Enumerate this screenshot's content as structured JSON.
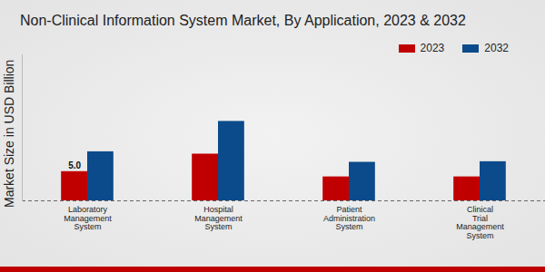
{
  "chart_data": {
    "type": "bar",
    "title": "Non-Clinical Information System Market, By Application, 2023 & 2032",
    "y_label": "Market Size in USD Billion",
    "categories": [
      "Laboratory\nManagement\nSystem",
      "Hospital\nManagement\nSystem",
      "Patient\nAdministration\nSystem",
      "Clinical\nTrial\nManagement\nSystem"
    ],
    "series": [
      {
        "name": "2023",
        "color": "#c00000",
        "values": [
          5.0,
          8.0,
          4.1,
          4.1
        ],
        "value_labels": [
          "5.0",
          null,
          null,
          null
        ]
      },
      {
        "name": "2032",
        "color": "#0b4a8b",
        "values": [
          8.4,
          13.6,
          6.6,
          6.7
        ]
      }
    ],
    "ylim": [
      0,
      25
    ],
    "grid": false,
    "legend": "top-right",
    "tick_labels": "x"
  }
}
